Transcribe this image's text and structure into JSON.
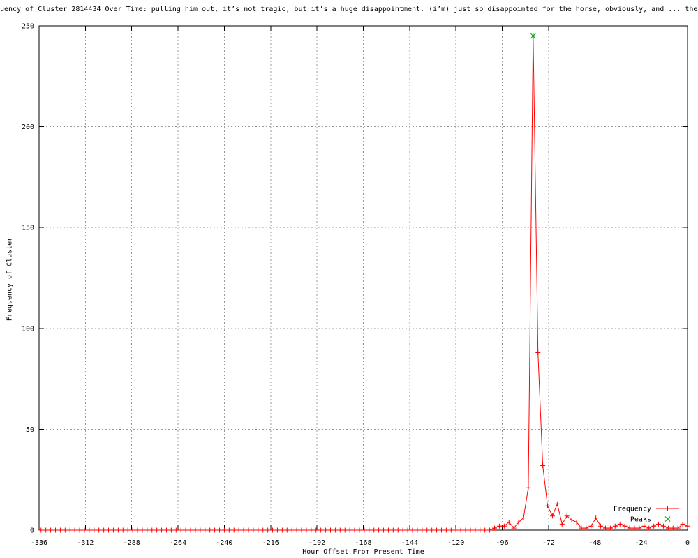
{
  "colors": {
    "background": "#ffffff",
    "border": "#000000",
    "grid": "#999999",
    "text": "#000000",
    "frequency_series": "#ff0000",
    "peaks_series": "#00a000"
  },
  "chart_data": {
    "type": "line",
    "title": "uency of Cluster 2814434 Over Time: pulling him out, it’s not tragic, but it’s a huge disappointment. (i’m) just so disappointed for the horse, obviously, and ... the",
    "xlabel": "Hour Offset From Present Time",
    "ylabel": "Frequency of Cluster",
    "xlim": [
      -336,
      0
    ],
    "ylim": [
      0,
      250
    ],
    "x_ticks": [
      -336,
      -312,
      -288,
      -264,
      -240,
      -216,
      -192,
      -168,
      -144,
      -120,
      -96,
      -72,
      -48,
      -24,
      0
    ],
    "y_ticks": [
      0,
      50,
      100,
      150,
      200,
      250
    ],
    "grid": true,
    "legend": {
      "position": "bottom-right",
      "entries": [
        "Frequency",
        "Peaks"
      ]
    },
    "series": [
      {
        "name": "Frequency",
        "color": "#ff0000",
        "style": "linespoints",
        "marker": "plus",
        "x_start": -335,
        "x_step": 2.5,
        "values": [
          0,
          0,
          0,
          0,
          0,
          0,
          0,
          0,
          0,
          0,
          0,
          0,
          0,
          0,
          0,
          0,
          0,
          0,
          0,
          0,
          0,
          0,
          0,
          0,
          0,
          0,
          0,
          0,
          0,
          0,
          0,
          0,
          0,
          0,
          0,
          0,
          0,
          0,
          0,
          0,
          0,
          0,
          0,
          0,
          0,
          0,
          0,
          0,
          0,
          0,
          0,
          0,
          0,
          0,
          0,
          0,
          0,
          0,
          0,
          0,
          0,
          0,
          0,
          0,
          0,
          0,
          0,
          0,
          0,
          0,
          0,
          0,
          0,
          0,
          0,
          0,
          0,
          0,
          0,
          0,
          0,
          0,
          0,
          0,
          0,
          0,
          0,
          0,
          0,
          0,
          0,
          0,
          0,
          0,
          1,
          2,
          2,
          4,
          1,
          4,
          6,
          21,
          245,
          88,
          32,
          12,
          7,
          13,
          3,
          7,
          5,
          4,
          1,
          1,
          2,
          6,
          2,
          1,
          1,
          2,
          3,
          2,
          1,
          1,
          1,
          2,
          1,
          2,
          3,
          2,
          1,
          1,
          1,
          3,
          2
        ]
      },
      {
        "name": "Peaks",
        "color": "#00a000",
        "style": "points",
        "marker": "cross",
        "points": [
          [
            -80,
            245
          ]
        ]
      }
    ]
  }
}
